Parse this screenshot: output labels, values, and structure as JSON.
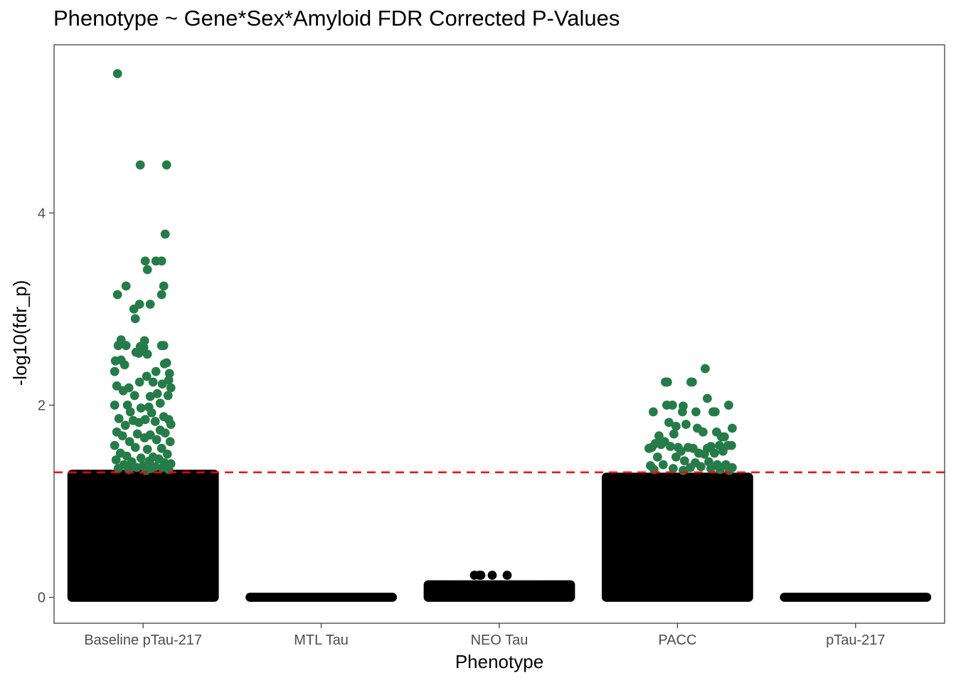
{
  "chart_data": {
    "type": "scatter",
    "title": "Phenotype ~ Gene*Sex*Amyloid FDR Corrected P-Values",
    "xlabel": "Phenotype",
    "ylabel": "-log10(fdr_p)",
    "categories": [
      "Baseline pTau-217",
      "MTL Tau",
      "NEO Tau",
      "PACC",
      "pTau-217"
    ],
    "ylim": [
      -0.27,
      5.75
    ],
    "yticks": [
      0,
      2,
      4
    ],
    "grid": false,
    "threshold": {
      "value": 1.301,
      "color": "#ff0000",
      "style": "dashed"
    },
    "colors": {
      "significant": "#267c48",
      "not_significant": "#000000"
    },
    "series": [
      {
        "category": "Baseline pTau-217",
        "density_max": 1.28,
        "significant_points": [
          [
            -0.36,
            5.45
          ],
          [
            -0.04,
            4.5
          ],
          [
            0.33,
            4.5
          ],
          [
            0.31,
            3.78
          ],
          [
            0.03,
            3.5
          ],
          [
            0.18,
            3.5
          ],
          [
            0.26,
            3.5
          ],
          [
            0.06,
            3.41
          ],
          [
            0.29,
            3.24
          ],
          [
            -0.24,
            3.24
          ],
          [
            -0.36,
            3.15
          ],
          [
            0.26,
            3.15
          ],
          [
            -0.05,
            3.05
          ],
          [
            0.1,
            3.05
          ],
          [
            -0.13,
            3.0
          ],
          [
            -0.11,
            2.9
          ],
          [
            0.02,
            2.67
          ],
          [
            -0.31,
            2.68
          ],
          [
            -0.35,
            2.62
          ],
          [
            0.26,
            2.62
          ],
          [
            0.29,
            2.62
          ],
          [
            -0.04,
            2.61
          ],
          [
            0.01,
            2.6
          ],
          [
            -0.02,
            2.57
          ],
          [
            -0.1,
            2.55
          ],
          [
            -0.06,
            2.54
          ],
          [
            0.06,
            2.53
          ],
          [
            -0.24,
            2.62
          ],
          [
            -0.31,
            2.47
          ],
          [
            -0.39,
            2.46
          ],
          [
            0.33,
            2.44
          ],
          [
            0.3,
            2.43
          ],
          [
            -0.26,
            2.42
          ],
          [
            -0.4,
            2.35
          ],
          [
            0.18,
            2.35
          ],
          [
            0.37,
            2.33
          ],
          [
            0.36,
            2.26
          ],
          [
            -0.05,
            2.24
          ],
          [
            0.14,
            2.24
          ],
          [
            0.05,
            2.3
          ],
          [
            0.27,
            2.22
          ],
          [
            -0.37,
            2.2
          ],
          [
            -0.2,
            2.18
          ],
          [
            0.39,
            2.18
          ],
          [
            0.2,
            2.12
          ],
          [
            0.1,
            2.09
          ],
          [
            -0.28,
            2.15
          ],
          [
            -0.12,
            2.1
          ],
          [
            -0.4,
            2.0
          ],
          [
            -0.22,
            2.0
          ],
          [
            -0.03,
            1.97
          ],
          [
            0.08,
            1.98
          ],
          [
            0.24,
            2.02
          ],
          [
            0.35,
            2.1
          ],
          [
            -0.18,
            1.93
          ],
          [
            0.12,
            1.92
          ],
          [
            0.29,
            1.88
          ],
          [
            -0.34,
            1.86
          ],
          [
            0.03,
            1.85
          ],
          [
            0.36,
            1.85
          ],
          [
            -0.14,
            1.84
          ],
          [
            0.17,
            1.83
          ],
          [
            -0.06,
            1.82
          ],
          [
            0.39,
            1.8
          ],
          [
            -0.25,
            1.79
          ],
          [
            -0.37,
            1.72
          ],
          [
            0.24,
            1.74
          ],
          [
            0.31,
            1.71
          ],
          [
            -0.08,
            1.7
          ],
          [
            0.1,
            1.69
          ],
          [
            -0.29,
            1.68
          ],
          [
            0.02,
            1.66
          ],
          [
            0.19,
            1.64
          ],
          [
            -0.19,
            1.62
          ],
          [
            0.38,
            1.62
          ],
          [
            -0.4,
            1.58
          ],
          [
            -0.11,
            1.56
          ],
          [
            0.26,
            1.55
          ],
          [
            0.06,
            1.54
          ],
          [
            -0.32,
            1.5
          ],
          [
            0.34,
            1.49
          ],
          [
            -0.23,
            1.47
          ],
          [
            0.14,
            1.46
          ],
          [
            -0.03,
            1.45
          ],
          [
            0.22,
            1.44
          ],
          [
            -0.38,
            1.43
          ],
          [
            0.09,
            1.42
          ],
          [
            -0.16,
            1.41
          ],
          [
            0.3,
            1.4
          ],
          [
            0.39,
            1.39
          ],
          [
            -0.27,
            1.38
          ],
          [
            0.0,
            1.37
          ],
          [
            0.17,
            1.36
          ],
          [
            -0.09,
            1.35
          ],
          [
            0.27,
            1.35
          ],
          [
            -0.35,
            1.34
          ],
          [
            0.11,
            1.34
          ],
          [
            -0.2,
            1.33
          ],
          [
            0.36,
            1.33
          ],
          [
            0.04,
            1.32
          ]
        ]
      },
      {
        "category": "MTL Tau",
        "density_max": 0.0,
        "significant_points": []
      },
      {
        "category": "NEO Tau",
        "density_max": 0.13,
        "significant_points": [],
        "outlier_points": [
          [
            -0.35,
            0.23
          ],
          [
            -0.28,
            0.23
          ],
          [
            -0.26,
            0.23
          ],
          [
            -0.1,
            0.23
          ],
          [
            0.11,
            0.23
          ]
        ]
      },
      {
        "category": "PACC",
        "density_max": 1.25,
        "significant_points": [
          [
            0.39,
            2.38
          ],
          [
            -0.17,
            2.24
          ],
          [
            -0.14,
            2.24
          ],
          [
            -0.16,
            2.24
          ],
          [
            0.19,
            2.24
          ],
          [
            0.21,
            2.24
          ],
          [
            0.42,
            2.07
          ],
          [
            -0.34,
            1.93
          ],
          [
            0.26,
            1.93
          ],
          [
            0.5,
            1.93
          ],
          [
            0.53,
            1.93
          ],
          [
            0.72,
            2.0
          ],
          [
            0.07,
            1.93
          ],
          [
            -0.15,
            2.0
          ],
          [
            -0.07,
            2.0
          ],
          [
            0.08,
            1.99
          ],
          [
            0.77,
            1.76
          ],
          [
            -0.12,
            1.82
          ],
          [
            -0.02,
            1.78
          ],
          [
            0.12,
            1.8
          ],
          [
            0.28,
            1.76
          ],
          [
            0.36,
            1.72
          ],
          [
            0.55,
            1.72
          ],
          [
            0.62,
            1.67
          ],
          [
            0.66,
            1.67
          ],
          [
            -0.26,
            1.68
          ],
          [
            -0.05,
            1.7
          ],
          [
            -0.31,
            1.6
          ],
          [
            -0.23,
            1.59
          ],
          [
            -0.18,
            1.62
          ],
          [
            0.01,
            1.56
          ],
          [
            0.15,
            1.56
          ],
          [
            0.22,
            1.55
          ],
          [
            0.42,
            1.55
          ],
          [
            0.47,
            1.57
          ],
          [
            0.59,
            1.58
          ],
          [
            0.71,
            1.58
          ],
          [
            0.76,
            1.58
          ],
          [
            -0.4,
            1.55
          ],
          [
            -0.36,
            1.56
          ],
          [
            -0.1,
            1.57
          ],
          [
            0.05,
            1.52
          ],
          [
            0.3,
            1.5
          ],
          [
            0.38,
            1.49
          ],
          [
            0.52,
            1.5
          ],
          [
            0.64,
            1.52
          ],
          [
            -0.28,
            1.46
          ],
          [
            -0.02,
            1.46
          ],
          [
            0.1,
            1.42
          ],
          [
            0.25,
            1.4
          ],
          [
            0.44,
            1.41
          ],
          [
            0.56,
            1.38
          ],
          [
            0.68,
            1.38
          ],
          [
            0.77,
            1.35
          ],
          [
            -0.38,
            1.37
          ],
          [
            -0.2,
            1.38
          ],
          [
            0.18,
            1.35
          ],
          [
            0.33,
            1.36
          ],
          [
            0.47,
            1.34
          ],
          [
            -0.06,
            1.34
          ],
          [
            0.6,
            1.33
          ],
          [
            0.73,
            1.32
          ],
          [
            0.08,
            1.32
          ],
          [
            -0.33,
            1.33
          ]
        ]
      },
      {
        "category": "pTau-217",
        "density_max": 0.0,
        "significant_points": []
      }
    ]
  }
}
